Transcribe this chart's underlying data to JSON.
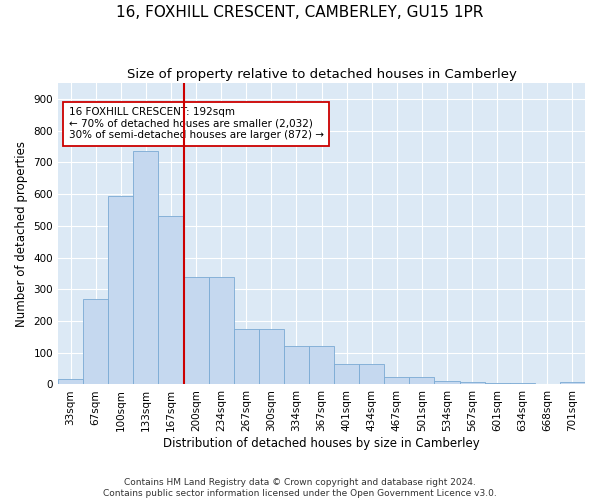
{
  "title": "16, FOXHILL CRESCENT, CAMBERLEY, GU15 1PR",
  "subtitle": "Size of property relative to detached houses in Camberley",
  "xlabel": "Distribution of detached houses by size in Camberley",
  "ylabel": "Number of detached properties",
  "categories": [
    "33sqm",
    "67sqm",
    "100sqm",
    "133sqm",
    "167sqm",
    "200sqm",
    "234sqm",
    "267sqm",
    "300sqm",
    "334sqm",
    "367sqm",
    "401sqm",
    "434sqm",
    "467sqm",
    "501sqm",
    "534sqm",
    "567sqm",
    "601sqm",
    "634sqm",
    "668sqm",
    "701sqm"
  ],
  "values": [
    18,
    270,
    593,
    737,
    530,
    340,
    340,
    175,
    175,
    120,
    120,
    65,
    65,
    25,
    25,
    10,
    7,
    5,
    5,
    0,
    8
  ],
  "bar_color": "#c5d8ef",
  "bar_edge_color": "#7aaad4",
  "vline_x": 5,
  "vline_color": "#cc0000",
  "annotation_text": "16 FOXHILL CRESCENT: 192sqm\n← 70% of detached houses are smaller (2,032)\n30% of semi-detached houses are larger (872) →",
  "annotation_box_color": "#ffffff",
  "annotation_box_edge": "#cc0000",
  "ylim": [
    0,
    950
  ],
  "yticks": [
    0,
    100,
    200,
    300,
    400,
    500,
    600,
    700,
    800,
    900
  ],
  "footer": "Contains HM Land Registry data © Crown copyright and database right 2024.\nContains public sector information licensed under the Open Government Licence v3.0.",
  "bg_color": "#dce9f5",
  "grid_color": "#ffffff",
  "title_fontsize": 11,
  "subtitle_fontsize": 9.5,
  "axis_label_fontsize": 8.5,
  "tick_fontsize": 7.5,
  "footer_fontsize": 6.5
}
